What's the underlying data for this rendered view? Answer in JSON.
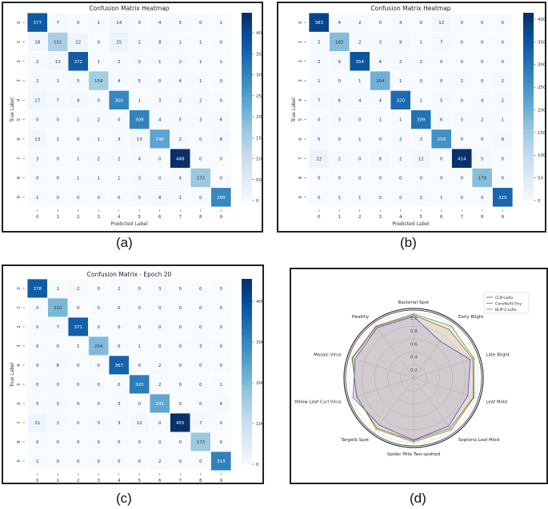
{
  "panel_labels": [
    "(a)",
    "(b)",
    "(c)",
    "(d)"
  ],
  "chart_data": [
    {
      "type": "heatmap",
      "title": "Confusion Matrix Heatmap",
      "xlabel": "Predicted Label",
      "ylabel": "True Label",
      "labels": [
        "0",
        "1",
        "2",
        "3",
        "4",
        "5",
        "6",
        "7",
        "8",
        "9"
      ],
      "colormap": "Blues",
      "colorbar_range": [
        0,
        448
      ],
      "colorbar_ticks": [
        0,
        50,
        100,
        150,
        200,
        250,
        300,
        350,
        400
      ],
      "matrix": [
        [
          377,
          7,
          0,
          1,
          14,
          0,
          4,
          5,
          0,
          1
        ],
        [
          18,
          151,
          22,
          0,
          25,
          2,
          8,
          1,
          1,
          0
        ],
        [
          2,
          13,
          372,
          1,
          2,
          3,
          1,
          2,
          1,
          1
        ],
        [
          2,
          1,
          5,
          159,
          4,
          5,
          0,
          4,
          1,
          0
        ],
        [
          17,
          7,
          9,
          0,
          300,
          1,
          3,
          2,
          2,
          0
        ],
        [
          0,
          0,
          1,
          2,
          0,
          308,
          4,
          5,
          3,
          6
        ],
        [
          13,
          1,
          0,
          1,
          3,
          13,
          246,
          2,
          0,
          8
        ],
        [
          3,
          0,
          1,
          2,
          2,
          4,
          0,
          448,
          0,
          0
        ],
        [
          0,
          0,
          1,
          1,
          1,
          3,
          0,
          4,
          172,
          0
        ],
        [
          1,
          0,
          0,
          0,
          0,
          3,
          8,
          1,
          0,
          299
        ]
      ]
    },
    {
      "type": "heatmap",
      "title": "Confusion Matrix Heatmap",
      "xlabel": "Predicted Label",
      "ylabel": "True Label",
      "labels": [
        "0",
        "1",
        "2",
        "3",
        "4",
        "5",
        "6",
        "7",
        "8",
        "9"
      ],
      "colormap": "Blues",
      "colorbar_range": [
        0,
        414
      ],
      "colorbar_ticks": [
        0,
        50,
        100,
        150,
        200,
        250,
        300,
        350,
        400
      ],
      "matrix": [
        [
          383,
          4,
          2,
          0,
          4,
          0,
          12,
          0,
          0,
          0
        ],
        [
          2,
          182,
          2,
          3,
          9,
          1,
          7,
          0,
          0,
          0
        ],
        [
          2,
          9,
          354,
          4,
          2,
          2,
          0,
          0,
          0,
          0
        ],
        [
          1,
          0,
          1,
          204,
          1,
          0,
          0,
          2,
          0,
          2
        ],
        [
          7,
          6,
          4,
          4,
          320,
          1,
          5,
          0,
          4,
          2
        ],
        [
          0,
          3,
          0,
          1,
          1,
          309,
          6,
          3,
          2,
          1
        ],
        [
          5,
          0,
          1,
          0,
          2,
          3,
          259,
          0,
          0,
          9
        ],
        [
          22,
          2,
          0,
          6,
          2,
          12,
          0,
          414,
          5,
          0
        ],
        [
          0,
          0,
          0,
          0,
          0,
          0,
          0,
          0,
          178,
          0
        ],
        [
          0,
          1,
          1,
          0,
          0,
          2,
          1,
          0,
          0,
          329
        ]
      ]
    },
    {
      "type": "heatmap",
      "title": "Confusion Matrix - Epoch 20",
      "xlabel": "Predicted Label",
      "ylabel": "True Label",
      "labels": [
        "0",
        "1",
        "2",
        "3",
        "4",
        "5",
        "6",
        "7",
        "8",
        "9"
      ],
      "colormap": "Blues",
      "colorbar_range": [
        0,
        455
      ],
      "colorbar_ticks": [
        0,
        100,
        200,
        300,
        400
      ],
      "matrix": [
        [
          378,
          1,
          2,
          0,
          2,
          0,
          3,
          0,
          0,
          0
        ],
        [
          0,
          210,
          0,
          0,
          0,
          0,
          0,
          0,
          0,
          0
        ],
        [
          0,
          7,
          371,
          0,
          0,
          0,
          0,
          0,
          0,
          0
        ],
        [
          0,
          0,
          1,
          204,
          0,
          1,
          0,
          0,
          3,
          0
        ],
        [
          0,
          8,
          0,
          0,
          367,
          0,
          2,
          0,
          0,
          0
        ],
        [
          0,
          0,
          0,
          0,
          0,
          320,
          2,
          0,
          0,
          1
        ],
        [
          5,
          3,
          0,
          0,
          3,
          0,
          241,
          0,
          0,
          4
        ],
        [
          21,
          2,
          0,
          3,
          3,
          12,
          0,
          455,
          7,
          0
        ],
        [
          0,
          0,
          0,
          0,
          0,
          0,
          0,
          0,
          173,
          0
        ],
        [
          1,
          0,
          0,
          0,
          0,
          0,
          2,
          0,
          0,
          313
        ]
      ]
    },
    {
      "type": "radar",
      "categories": [
        "Bacterial Spot",
        "Early Blight",
        "Late Blight",
        "Leaf Mold",
        "Septoria Leaf Mold",
        "Spider Mite Two-spotted",
        "Targetb Spot",
        "Yellow Leaf Curl Virus",
        "Mosaic Virus",
        "Healthy"
      ],
      "radial_ticks": [
        "0.2",
        "0.4",
        "0.6",
        "0.8",
        "1.0"
      ],
      "rlim": [
        0,
        1.05
      ],
      "grid": true,
      "legend_placement": "top-right",
      "series": [
        {
          "name": "CLIP-LoRa",
          "color": "#4040e0",
          "values": [
            0.95,
            0.7,
            0.92,
            0.88,
            0.92,
            0.96,
            0.9,
            0.98,
            0.95,
            0.96
          ]
        },
        {
          "name": "ConvNeXt-Tiny",
          "color": "#e04040",
          "values": [
            0.97,
            0.93,
            0.96,
            0.97,
            0.96,
            0.97,
            0.96,
            0.93,
            0.99,
            0.98
          ]
        },
        {
          "name": "BLIP-2-LoRa",
          "color": "#40a040",
          "values": [
            0.99,
            0.99,
            0.98,
            0.98,
            0.99,
            0.99,
            0.98,
            0.92,
            1.0,
            0.99
          ]
        }
      ]
    }
  ]
}
